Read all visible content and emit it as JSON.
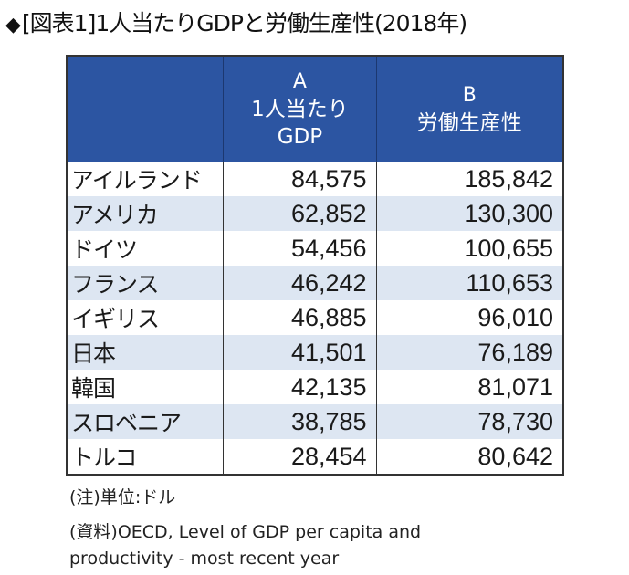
{
  "title": {
    "bullet": "◆",
    "text": "[図表1]1人当たりGDPと労働生産性(2018年)"
  },
  "table": {
    "headers": [
      {
        "letter": "",
        "label": ""
      },
      {
        "letter": "A",
        "label": "1人当たり GDP",
        "label_line1": "1人当たり",
        "label_line2": "GDP"
      },
      {
        "letter": "B",
        "label": "労働生産性"
      }
    ],
    "rows": [
      {
        "country": "アイルランド",
        "gdp_per_capita": "84,575",
        "labor_productivity": "185,842"
      },
      {
        "country": "アメリカ",
        "gdp_per_capita": "62,852",
        "labor_productivity": "130,300"
      },
      {
        "country": "ドイツ",
        "gdp_per_capita": "54,456",
        "labor_productivity": "100,655"
      },
      {
        "country": "フランス",
        "gdp_per_capita": "46,242",
        "labor_productivity": "110,653"
      },
      {
        "country": "イギリス",
        "gdp_per_capita": "46,885",
        "labor_productivity": "96,010"
      },
      {
        "country": "日本",
        "gdp_per_capita": "41,501",
        "labor_productivity": "76,189"
      },
      {
        "country": "韓国",
        "gdp_per_capita": "42,135",
        "labor_productivity": "81,071"
      },
      {
        "country": "スロベニア",
        "gdp_per_capita": "38,785",
        "labor_productivity": "78,730"
      },
      {
        "country": "トルコ",
        "gdp_per_capita": "28,454",
        "labor_productivity": "80,642"
      }
    ]
  },
  "notes": {
    "unit": "(注)単位:ドル",
    "source_line1": "(資料)OECD, Level of GDP per capita and",
    "source_line2": "productivity  - most recent year"
  },
  "colors": {
    "header_bg": "#2c55a2",
    "header_text": "#ffffff",
    "stripe_bg": "#dde6f2"
  }
}
